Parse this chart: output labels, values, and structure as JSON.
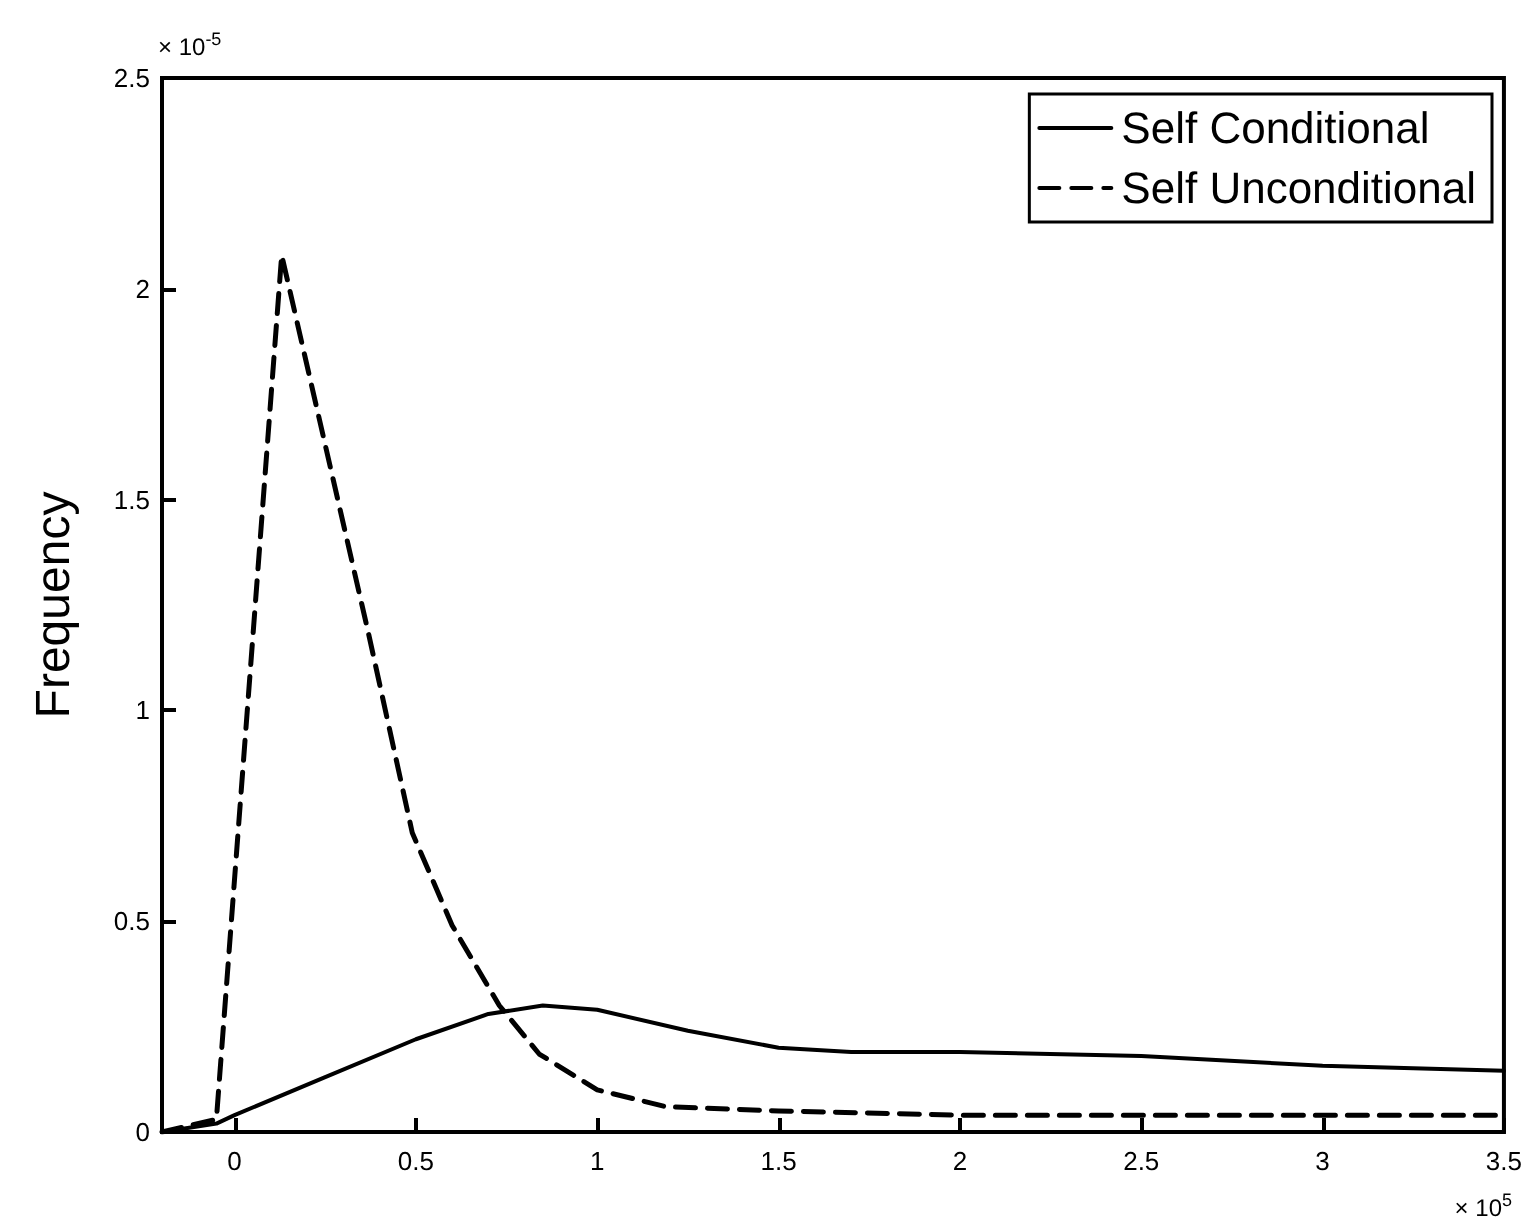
{
  "chart_data": {
    "type": "line",
    "ylabel": "Frequency",
    "annotations": [
      "× 10$^{-5}$",
      "× 10$^{5}$"
    ],
    "series": [
      {
        "name": "Self Conditional",
        "color": "#000000",
        "line_style": "solid",
        "x": [
          -0.2,
          -0.05,
          0,
          0.25,
          0.5,
          0.7,
          0.85,
          1.0,
          1.25,
          1.5,
          1.7,
          2.0,
          2.5,
          3.0,
          3.5
        ],
        "values": [
          0,
          0.02,
          0.04,
          0.13,
          0.22,
          0.28,
          0.3,
          0.29,
          0.24,
          0.2,
          0.19,
          0.19,
          0.18,
          0.157,
          0.145
        ]
      },
      {
        "name": "Self Unconditional",
        "color": "#000000",
        "line_style": "dashed",
        "x": [
          -0.2,
          -0.05,
          0.13,
          0.37,
          0.49,
          0.6,
          0.73,
          0.84,
          1.0,
          1.19,
          1.5,
          2.0,
          2.5,
          3.0,
          3.5
        ],
        "values": [
          0,
          0.03,
          2.08,
          1.18,
          0.71,
          0.49,
          0.3,
          0.185,
          0.1,
          0.06,
          0.05,
          0.04,
          0.04,
          0.04,
          0.04
        ]
      }
    ],
    "xlim": [
      -0.2,
      3.5
    ],
    "xticks": [
      0,
      0.5,
      1,
      1.5,
      2,
      2.5,
      3,
      3.5
    ],
    "ylim": [
      0,
      2.5
    ],
    "yticks": [
      0,
      0.5,
      1,
      1.5,
      2,
      2.5
    ],
    "grid": false,
    "legend": "top right",
    "marker": "none"
  }
}
